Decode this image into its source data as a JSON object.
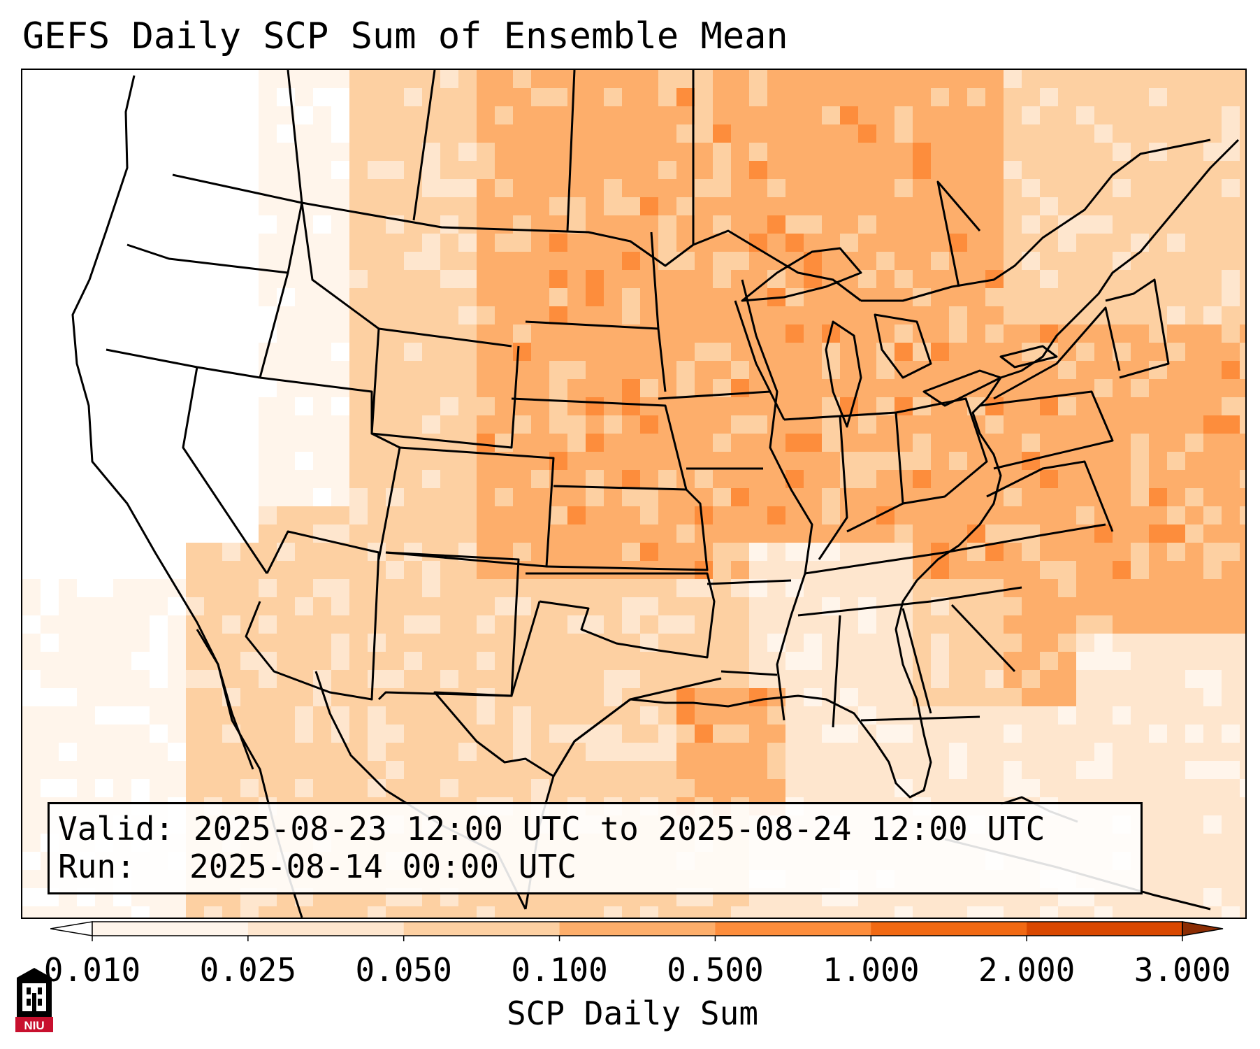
{
  "title": "GEFS Daily SCP Sum of Ensemble Mean",
  "info": {
    "valid_label": "Valid:",
    "valid_value": "2025-08-23 12:00 UTC to 2025-08-24 12:00 UTC",
    "run_label": "Run:",
    "run_value": "2025-08-14 00:00 UTC"
  },
  "colorbar": {
    "label": "SCP Daily Sum",
    "ticks": [
      "0.010",
      "0.025",
      "0.050",
      "0.100",
      "0.500",
      "1.000",
      "2.000",
      "3.000"
    ],
    "colors": [
      "#fff5eb",
      "#fee6ce",
      "#fdd0a2",
      "#fdae6b",
      "#fd8d3c",
      "#f16913",
      "#d94801",
      "#8c2d04"
    ],
    "under_color": "#ffffff",
    "over_color": "#8c2d04",
    "extend": "both"
  },
  "map": {
    "field_colors": [
      "#ffffff",
      "#fff5eb",
      "#fee6ce",
      "#fdd0a2",
      "#fdae6b",
      "#fd8d3c"
    ],
    "line_color": "#000000"
  },
  "logo": {
    "text": "NIU",
    "colors": {
      "primary": "#c8102e",
      "dark": "#000000"
    },
    "icon": "university-tower-icon"
  }
}
